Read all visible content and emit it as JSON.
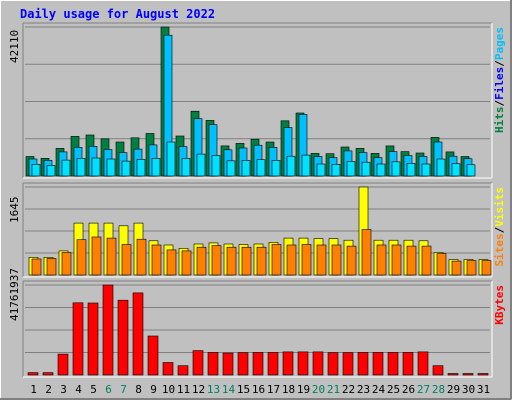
{
  "title": "Daily usage for August 2022",
  "colors": {
    "background": "#c0c0c0",
    "title": "#0000ff",
    "hits": "#008040",
    "files": "#00c0ff",
    "pages": "#00e0ff",
    "sites": "#ff8000",
    "visits": "#ffff00",
    "kbytes": "#ff0000",
    "weekend_day": "#00805c",
    "weekday": "#000000",
    "grid": "#808080"
  },
  "chart_data": [
    {
      "type": "bar",
      "panel": "hits-files-pages",
      "ymax_label": "42110",
      "ylim": [
        0,
        42110
      ],
      "right_labels": [
        {
          "text": "Hits",
          "color": "#008040"
        },
        {
          "text": "Files",
          "color": "#0000ff"
        },
        {
          "text": "Pages",
          "color": "#00c0ff"
        }
      ],
      "categories": [
        "1",
        "2",
        "3",
        "4",
        "5",
        "6",
        "7",
        "8",
        "9",
        "10",
        "11",
        "12",
        "13",
        "14",
        "15",
        "16",
        "17",
        "18",
        "19",
        "20",
        "21",
        "22",
        "23",
        "24",
        "25",
        "26",
        "27",
        "28",
        "29",
        "30",
        "31"
      ],
      "series": [
        {
          "name": "Hits",
          "color": "#008040",
          "values": [
            5500,
            5000,
            7800,
            11200,
            11600,
            10500,
            9600,
            10800,
            12000,
            42110,
            11300,
            18300,
            15700,
            8500,
            9200,
            10400,
            9600,
            15600,
            17800,
            6400,
            6300,
            8200,
            7800,
            6400,
            8500,
            6900,
            6500,
            10900,
            6800,
            5500,
            0
          ]
        },
        {
          "name": "Files",
          "color": "#00c0ff",
          "values": [
            4800,
            4400,
            6800,
            8100,
            8400,
            7500,
            6600,
            7600,
            8800,
            39800,
            8300,
            16200,
            14500,
            7400,
            7900,
            8700,
            8100,
            13700,
            17400,
            5500,
            5200,
            7100,
            6600,
            5200,
            6900,
            5800,
            5500,
            9600,
            5600,
            4900,
            0
          ]
        },
        {
          "name": "Pages",
          "color": "#00e0ff",
          "values": [
            3300,
            3000,
            4500,
            5000,
            5100,
            4800,
            4200,
            4700,
            5000,
            9600,
            5000,
            6200,
            5800,
            4300,
            4400,
            4600,
            4400,
            5600,
            5900,
            3400,
            3300,
            4100,
            3900,
            3400,
            4000,
            3600,
            3400,
            4800,
            3500,
            3200,
            0
          ]
        }
      ]
    },
    {
      "type": "bar",
      "panel": "sites-visits",
      "ymax_label": "1645",
      "ylim": [
        0,
        1645
      ],
      "right_labels": [
        {
          "text": "Sites",
          "color": "#ff8000"
        },
        {
          "text": "Visits",
          "color": "#ffff00"
        }
      ],
      "categories": [
        "1",
        "2",
        "3",
        "4",
        "5",
        "6",
        "7",
        "8",
        "9",
        "10",
        "11",
        "12",
        "13",
        "14",
        "15",
        "16",
        "17",
        "18",
        "19",
        "20",
        "21",
        "22",
        "23",
        "24",
        "25",
        "26",
        "27",
        "28",
        "29",
        "30",
        "31"
      ],
      "series": [
        {
          "name": "Visits",
          "color": "#ffff00",
          "values": [
            330,
            330,
            450,
            970,
            970,
            970,
            920,
            970,
            640,
            560,
            500,
            580,
            600,
            580,
            570,
            580,
            610,
            690,
            690,
            680,
            680,
            650,
            1645,
            650,
            650,
            650,
            640,
            420,
            290,
            290,
            290
          ]
        },
        {
          "name": "Sites",
          "color": "#ff8000",
          "values": [
            300,
            310,
            420,
            660,
            710,
            690,
            570,
            670,
            560,
            470,
            450,
            520,
            550,
            520,
            520,
            520,
            570,
            560,
            570,
            560,
            560,
            540,
            850,
            560,
            560,
            540,
            540,
            400,
            260,
            270,
            270
          ]
        }
      ]
    },
    {
      "type": "bar",
      "panel": "kbytes",
      "ymax_label": "41761937",
      "ylim": [
        0,
        41761937
      ],
      "right_labels": [
        {
          "text": "KBytes",
          "color": "#ff0000"
        }
      ],
      "categories": [
        "1",
        "2",
        "3",
        "4",
        "5",
        "6",
        "7",
        "8",
        "9",
        "10",
        "11",
        "12",
        "13",
        "14",
        "15",
        "16",
        "17",
        "18",
        "19",
        "20",
        "21",
        "22",
        "23",
        "24",
        "25",
        "26",
        "27",
        "28",
        "29",
        "30",
        "31"
      ],
      "series": [
        {
          "name": "KBytes",
          "color": "#ff0000",
          "values": [
            1100000,
            1100000,
            9700000,
            33500000,
            33400000,
            41761937,
            34700000,
            38100000,
            18100000,
            5800000,
            4300000,
            11300000,
            10500000,
            10200000,
            10400000,
            10500000,
            10500000,
            10700000,
            10700000,
            10700000,
            10400000,
            10400000,
            10500000,
            10500000,
            10500000,
            10500000,
            10700000,
            4300000,
            700000,
            700000,
            700000
          ]
        }
      ]
    }
  ],
  "x_axis": {
    "labels": [
      "1",
      "2",
      "3",
      "4",
      "5",
      "6",
      "7",
      "8",
      "9",
      "10",
      "11",
      "12",
      "13",
      "14",
      "15",
      "16",
      "17",
      "18",
      "19",
      "20",
      "21",
      "22",
      "23",
      "24",
      "25",
      "26",
      "27",
      "28",
      "29",
      "30",
      "31"
    ],
    "weekend": [
      "6",
      "7",
      "13",
      "14",
      "20",
      "21",
      "27",
      "28"
    ]
  }
}
